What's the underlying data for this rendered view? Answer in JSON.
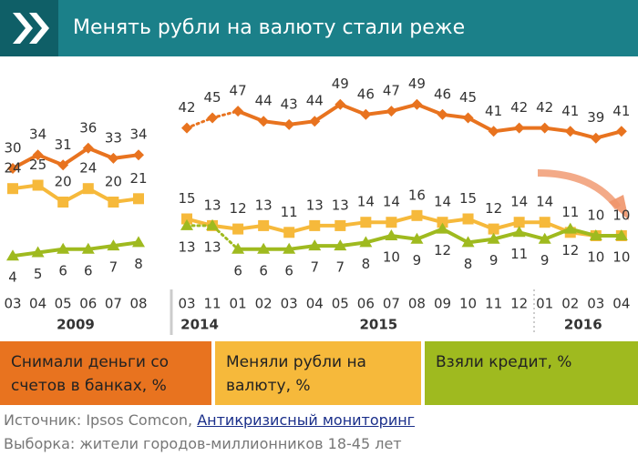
{
  "header": {
    "title": "Менять рубли на валюту стали реже"
  },
  "chart_data": {
    "type": "line",
    "categories": [
      "03",
      "04",
      "05",
      "06",
      "07",
      "08",
      "03",
      "11",
      "01",
      "02",
      "03",
      "04",
      "05",
      "06",
      "07",
      "08",
      "09",
      "10",
      "11",
      "12",
      "01",
      "02",
      "03",
      "04"
    ],
    "groups": [
      {
        "label": "2009",
        "size": 6
      },
      {
        "label": "2014",
        "size": 2
      },
      {
        "label": "2015",
        "size": 12
      },
      {
        "label": "2016",
        "size": 4
      }
    ],
    "series": [
      {
        "name": "Снимали деньги со счетов в банках, %",
        "color": "#e8731f",
        "marker": "diamond",
        "values": [
          30,
          34,
          31,
          36,
          33,
          34,
          42,
          45,
          47,
          44,
          43,
          44,
          49,
          46,
          47,
          49,
          46,
          45,
          41,
          42,
          42,
          41,
          39,
          41
        ]
      },
      {
        "name": "Меняли рубли на валюту, %",
        "color": "#f6b93b",
        "marker": "square",
        "values": [
          24,
          25,
          20,
          24,
          20,
          21,
          15,
          13,
          12,
          13,
          11,
          13,
          13,
          14,
          14,
          16,
          14,
          15,
          12,
          14,
          14,
          11,
          10,
          10
        ]
      },
      {
        "name": "Взяли кредит, %",
        "color": "#9fba1f",
        "marker": "triangle",
        "values": [
          4,
          5,
          6,
          6,
          7,
          8,
          13,
          13,
          6,
          6,
          6,
          7,
          7,
          8,
          10,
          9,
          12,
          8,
          9,
          11,
          9,
          12,
          10,
          10
        ]
      }
    ]
  },
  "footer": {
    "source": "Источник: Ipsos Comcon,",
    "source_link": "Антикризисный мониторинг",
    "sample": "Выборка: жители городов-миллионников 18-45 лет"
  }
}
